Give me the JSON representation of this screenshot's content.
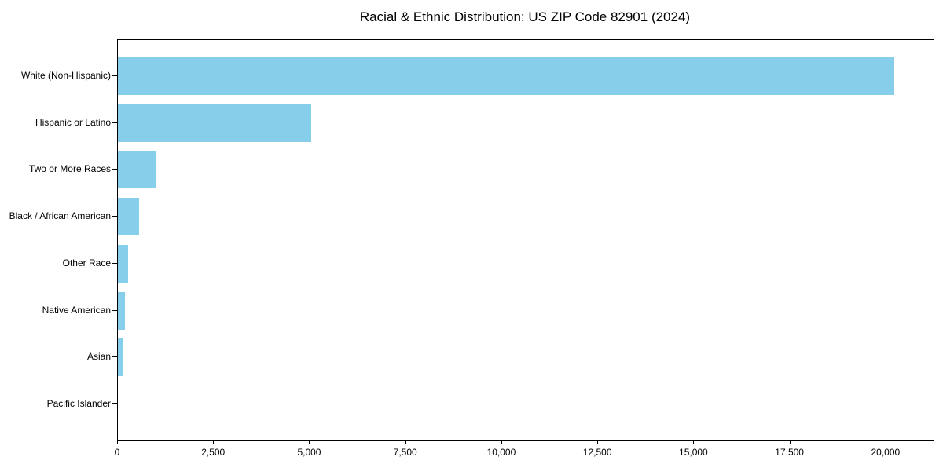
{
  "title": "Racial & Ethnic Distribution: US ZIP Code 82901 (2024)",
  "chart_data": {
    "type": "bar",
    "orientation": "horizontal",
    "title": "Racial & Ethnic Distribution: US ZIP Code 82901 (2024)",
    "xlabel": "",
    "ylabel": "",
    "categories": [
      "White (Non-Hispanic)",
      "Hispanic or Latino",
      "Two or More Races",
      "Black / African American",
      "Other Race",
      "Native American",
      "Asian",
      "Pacific Islander"
    ],
    "values": [
      20200,
      5030,
      1010,
      550,
      260,
      180,
      150,
      0
    ],
    "xlim": [
      0,
      21230
    ],
    "x_ticks": [
      0,
      2500,
      5000,
      7500,
      10000,
      12500,
      15000,
      17500,
      20000
    ],
    "x_tick_labels": [
      "0",
      "2,500",
      "5,000",
      "7,500",
      "10,000",
      "12,500",
      "15,000",
      "17,500",
      "20,000"
    ],
    "bar_color": "#87CEEB",
    "grid": false,
    "legend": null
  }
}
